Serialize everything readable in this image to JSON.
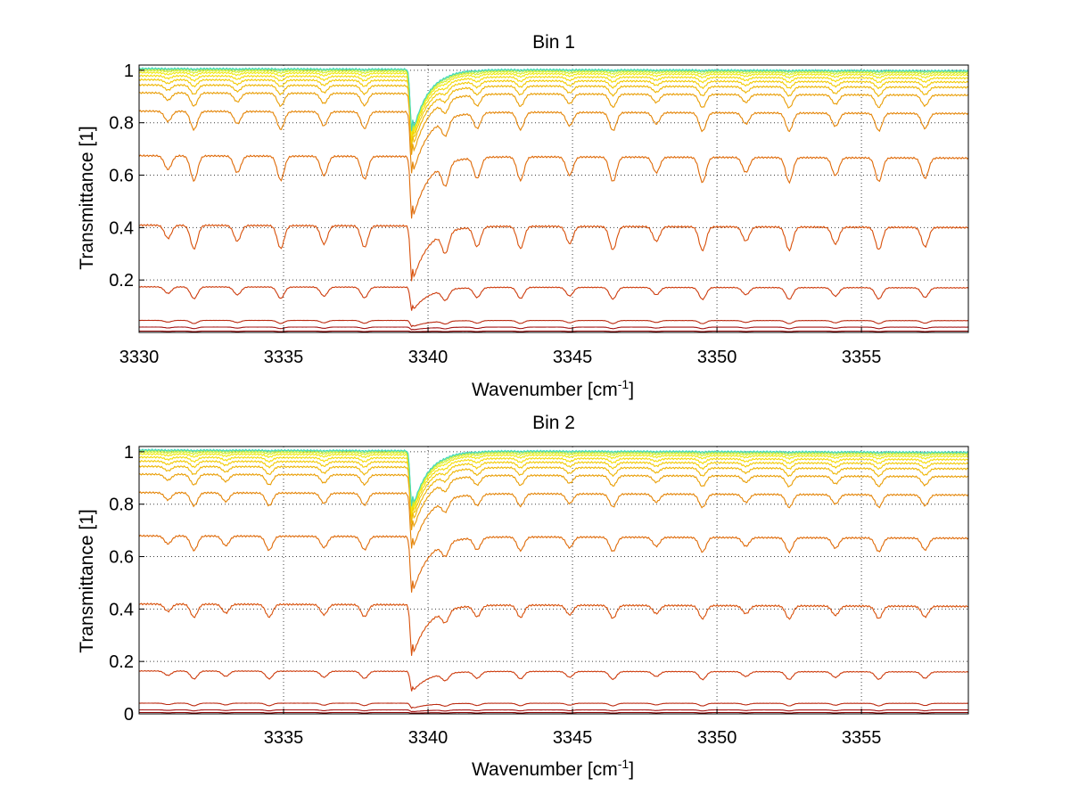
{
  "chart_data": [
    {
      "type": "line",
      "title": "Bin 1",
      "xlabel": "Wavenumber [cm",
      "xlabel_sup": "-1",
      "xlabel_tail": "]",
      "ylabel": "Transmittance [1]",
      "xlim": [
        3330,
        3358.7
      ],
      "ylim": [
        0.0,
        1.02
      ],
      "xticks": [
        3330,
        3335,
        3340,
        3345,
        3350,
        3355
      ],
      "yticks": [
        0.2,
        0.4,
        0.6,
        0.8,
        1
      ],
      "grid": true,
      "series_colors": [
        "#8b0000",
        "#a41212",
        "#bb2a10",
        "#cd3b0c",
        "#d8500a",
        "#df6a08",
        "#e48406",
        "#e99d04",
        "#eeb503",
        "#f2ca02",
        "#f5dc05",
        "#f0ea10",
        "#d8ee2a",
        "#a0e85a",
        "#40d8c0"
      ],
      "series": [
        {
          "baseline": 0.005,
          "depth": 0.002
        },
        {
          "baseline": 0.02,
          "depth": 0.006
        },
        {
          "baseline": 0.045,
          "depth": 0.012
        },
        {
          "baseline": 0.17,
          "depth": 0.045
        },
        {
          "baseline": 0.4,
          "depth": 0.09
        },
        {
          "baseline": 0.665,
          "depth": 0.095
        },
        {
          "baseline": 0.835,
          "depth": 0.07
        },
        {
          "baseline": 0.905,
          "depth": 0.05
        },
        {
          "baseline": 0.935,
          "depth": 0.035
        },
        {
          "baseline": 0.955,
          "depth": 0.025
        },
        {
          "baseline": 0.97,
          "depth": 0.018
        },
        {
          "baseline": 0.982,
          "depth": 0.012
        },
        {
          "baseline": 0.99,
          "depth": 0.008
        },
        {
          "baseline": 0.995,
          "depth": 0.004
        },
        {
          "baseline": 0.998,
          "depth": 0.002
        }
      ],
      "main_feature": {
        "center": 3339.45,
        "depth_scale": 1.0
      },
      "lines": [
        3331.0,
        3331.9,
        3333.4,
        3334.9,
        3336.4,
        3337.8,
        3340.6,
        3341.7,
        3343.2,
        3344.9,
        3346.4,
        3347.9,
        3349.5,
        3351.0,
        3352.5,
        3354.1,
        3355.6,
        3357.2
      ]
    },
    {
      "type": "line",
      "title": "Bin 2",
      "xlabel": "Wavenumber [cm",
      "xlabel_sup": "-1",
      "xlabel_tail": "]",
      "ylabel": "Transmittance [1]",
      "xlim": [
        3330,
        3358.7
      ],
      "ylim": [
        0.0,
        1.02
      ],
      "xticks": [
        3335,
        3340,
        3345,
        3350,
        3355
      ],
      "yticks": [
        0,
        0.2,
        0.4,
        0.6,
        0.8,
        1
      ],
      "grid": true,
      "series_colors": [
        "#8b0000",
        "#a41212",
        "#bb2a10",
        "#cd3b0c",
        "#d8500a",
        "#df6a08",
        "#e48406",
        "#e99d04",
        "#eeb503",
        "#f2ca02",
        "#f5dc05",
        "#f0ea10",
        "#d8ee2a",
        "#a0e85a",
        "#40d8c0"
      ],
      "series": [
        {
          "baseline": 0.005,
          "depth": 0.002
        },
        {
          "baseline": 0.015,
          "depth": 0.004
        },
        {
          "baseline": 0.04,
          "depth": 0.01
        },
        {
          "baseline": 0.16,
          "depth": 0.03
        },
        {
          "baseline": 0.41,
          "depth": 0.05
        },
        {
          "baseline": 0.67,
          "depth": 0.055
        },
        {
          "baseline": 0.835,
          "depth": 0.05
        },
        {
          "baseline": 0.905,
          "depth": 0.04
        },
        {
          "baseline": 0.935,
          "depth": 0.03
        },
        {
          "baseline": 0.955,
          "depth": 0.022
        },
        {
          "baseline": 0.97,
          "depth": 0.016
        },
        {
          "baseline": 0.982,
          "depth": 0.01
        },
        {
          "baseline": 0.99,
          "depth": 0.007
        },
        {
          "baseline": 0.995,
          "depth": 0.004
        },
        {
          "baseline": 0.998,
          "depth": 0.002
        }
      ],
      "main_feature": {
        "center": 3339.45,
        "depth_scale": 0.9
      },
      "lines": [
        3331.0,
        3331.9,
        3333.0,
        3334.5,
        3336.4,
        3337.8,
        3340.6,
        3341.7,
        3343.2,
        3344.9,
        3346.4,
        3347.9,
        3349.5,
        3351.0,
        3352.5,
        3354.1,
        3355.6,
        3357.2
      ]
    }
  ]
}
